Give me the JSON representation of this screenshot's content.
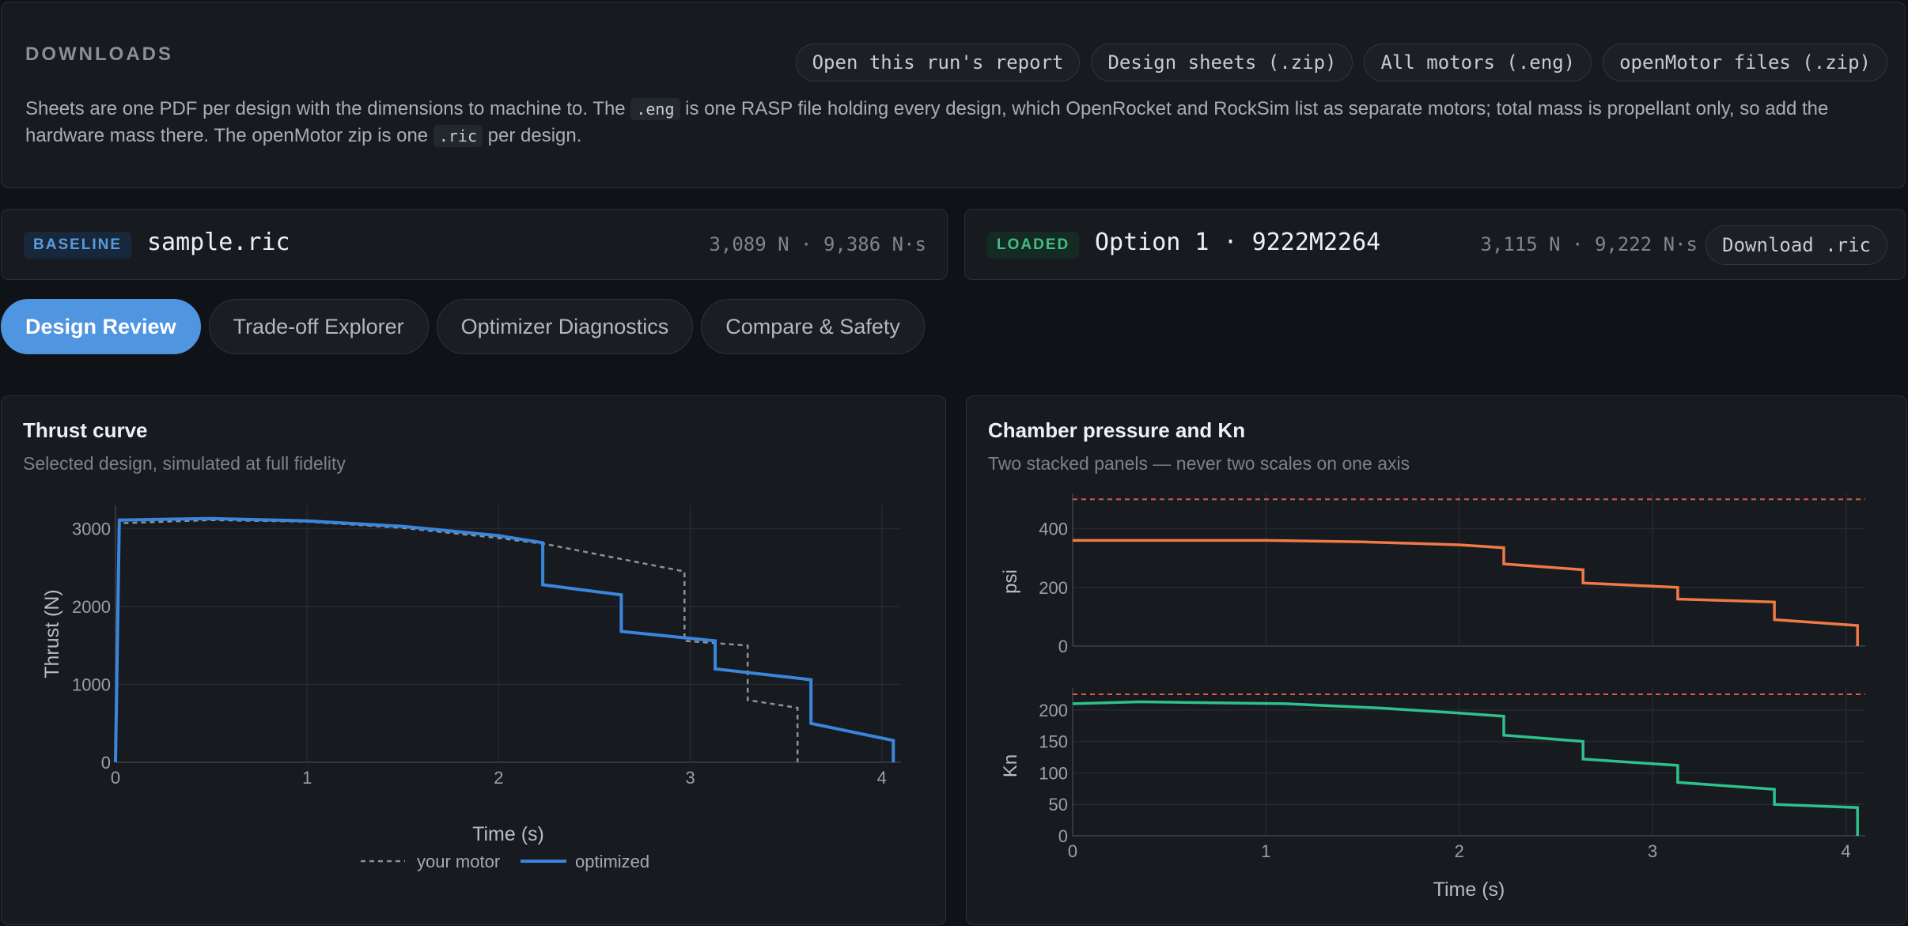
{
  "downloads": {
    "title": "DOWNLOADS",
    "buttons": [
      "Open this run's report",
      "Design sheets (.zip)",
      "All motors (.eng)",
      "openMotor files (.zip)"
    ],
    "desc": {
      "part1": "Sheets are one PDF per design with the dimensions to machine to. The ",
      "code1": ".eng",
      "part2": " is one RASP file holding every design, which OpenRocket and RockSim list as separate motors; total mass is propellant only, so add the hardware mass there. The openMotor zip is one ",
      "code2": ".ric",
      "part3": " per design."
    }
  },
  "baseline": {
    "badge": "BASELINE",
    "name": "sample.ric",
    "stats": "3,089 N · 9,386 N·s"
  },
  "loaded": {
    "badge": "LOADED",
    "name": "Option 1 · 9222M2264",
    "stats": "3,115 N · 9,222 N·s",
    "download_label": "Download .ric"
  },
  "tabs": [
    "Design Review",
    "Trade-off Explorer",
    "Optimizer Diagnostics",
    "Compare & Safety"
  ],
  "active_tab": 0,
  "thrust_chart": {
    "title": "Thrust curve",
    "subtitle": "Selected design, simulated at full fidelity"
  },
  "pressure_chart": {
    "title": "Chamber pressure and Kn",
    "subtitle": "Two stacked panels — never two scales on one axis"
  },
  "colors": {
    "accent": "#4f95e0",
    "thrust_line": "#3a86dd",
    "pressure": "#f07a45",
    "kn": "#2fc18b",
    "limit": "#e05a4a",
    "ghost": "#8e9298"
  },
  "chart_data": [
    {
      "type": "line",
      "xlabel": "Time (s)",
      "ylabel": "Thrust (N)",
      "xlim": [
        0,
        4.1
      ],
      "ylim": [
        0,
        3300
      ],
      "xticks": [
        0,
        1,
        2,
        3,
        4
      ],
      "yticks": [
        0,
        1000,
        2000,
        3000
      ],
      "grid": true,
      "legend": "bottom-center",
      "series": [
        {
          "name": "your motor",
          "style": "dashed",
          "x": [
            0,
            0.02,
            0.5,
            1.0,
            1.5,
            2.0,
            2.25,
            2.97,
            2.97,
            3.3,
            3.3,
            3.56,
            3.56
          ],
          "y": [
            0,
            3070,
            3110,
            3090,
            3010,
            2880,
            2800,
            2450,
            1560,
            1500,
            800,
            700,
            0
          ]
        },
        {
          "name": "optimized",
          "style": "solid",
          "x": [
            0,
            0.02,
            0.5,
            1.0,
            1.5,
            2.0,
            2.23,
            2.23,
            2.64,
            2.64,
            3.13,
            3.13,
            3.63,
            3.63,
            4.06,
            4.06
          ],
          "y": [
            0,
            3110,
            3130,
            3100,
            3030,
            2910,
            2820,
            2280,
            2150,
            1680,
            1560,
            1200,
            1060,
            500,
            280,
            0
          ]
        }
      ]
    },
    {
      "type": "line",
      "ylabel": "psi",
      "xlim": [
        0,
        4.1
      ],
      "ylim": [
        0,
        520
      ],
      "yticks": [
        0,
        200,
        400
      ],
      "limit_line": 500,
      "grid": true,
      "series": [
        {
          "x": [
            0,
            0.3,
            1.0,
            1.5,
            2.0,
            2.23,
            2.23,
            2.64,
            2.64,
            3.13,
            3.13,
            3.63,
            3.63,
            4.06,
            4.06
          ],
          "y": [
            360,
            360,
            360,
            355,
            345,
            335,
            280,
            260,
            215,
            200,
            160,
            150,
            90,
            70,
            0
          ]
        }
      ]
    },
    {
      "type": "line",
      "xlabel": "Time (s)",
      "ylabel": "Kn",
      "xlim": [
        0,
        4.1
      ],
      "ylim": [
        0,
        235
      ],
      "xticks": [
        0,
        1,
        2,
        3,
        4
      ],
      "yticks": [
        0,
        50,
        100,
        150,
        200
      ],
      "limit_line": 225,
      "grid": true,
      "series": [
        {
          "x": [
            0,
            0.35,
            1.1,
            1.6,
            2.0,
            2.23,
            2.23,
            2.64,
            2.64,
            3.13,
            3.13,
            3.63,
            3.63,
            4.06,
            4.06
          ],
          "y": [
            210,
            213,
            210,
            203,
            195,
            190,
            160,
            150,
            122,
            112,
            85,
            74,
            50,
            45,
            0
          ]
        }
      ]
    }
  ]
}
